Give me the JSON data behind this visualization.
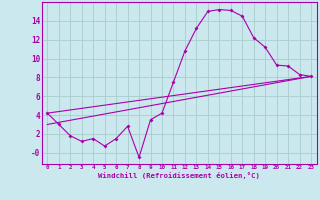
{
  "bg_color": "#cbe8ee",
  "line_color": "#aa00aa",
  "grid_color": "#aacccc",
  "xlabel": "Windchill (Refroidissement éolien,°C)",
  "xlabel_color": "#aa00aa",
  "tick_color": "#aa00aa",
  "ylim": [
    -1.2,
    16.0
  ],
  "xlim": [
    -0.5,
    23.5
  ],
  "yticks": [
    0,
    2,
    4,
    6,
    8,
    10,
    12,
    14
  ],
  "ytick_labels": [
    "-0",
    "2",
    "4",
    "6",
    "8",
    "10",
    "12",
    "14"
  ],
  "xticks": [
    0,
    1,
    2,
    3,
    4,
    5,
    6,
    7,
    8,
    9,
    10,
    11,
    12,
    13,
    14,
    15,
    16,
    17,
    18,
    19,
    20,
    21,
    22,
    23
  ],
  "series1_x": [
    0,
    1,
    2,
    3,
    4,
    5,
    6,
    7,
    8,
    9,
    10,
    11,
    12,
    13,
    14,
    15,
    16,
    17,
    18,
    19,
    20,
    21,
    22,
    23
  ],
  "series1_y": [
    4.2,
    3.0,
    1.8,
    1.2,
    1.5,
    0.7,
    1.5,
    2.8,
    -0.5,
    3.5,
    4.2,
    7.5,
    10.8,
    13.2,
    15.0,
    15.2,
    15.1,
    14.5,
    12.2,
    11.2,
    9.3,
    9.2,
    8.3,
    8.1
  ],
  "series2_x": [
    0,
    23
  ],
  "series2_y": [
    3.0,
    8.1
  ],
  "series3_x": [
    0,
    23
  ],
  "series3_y": [
    4.2,
    8.1
  ]
}
